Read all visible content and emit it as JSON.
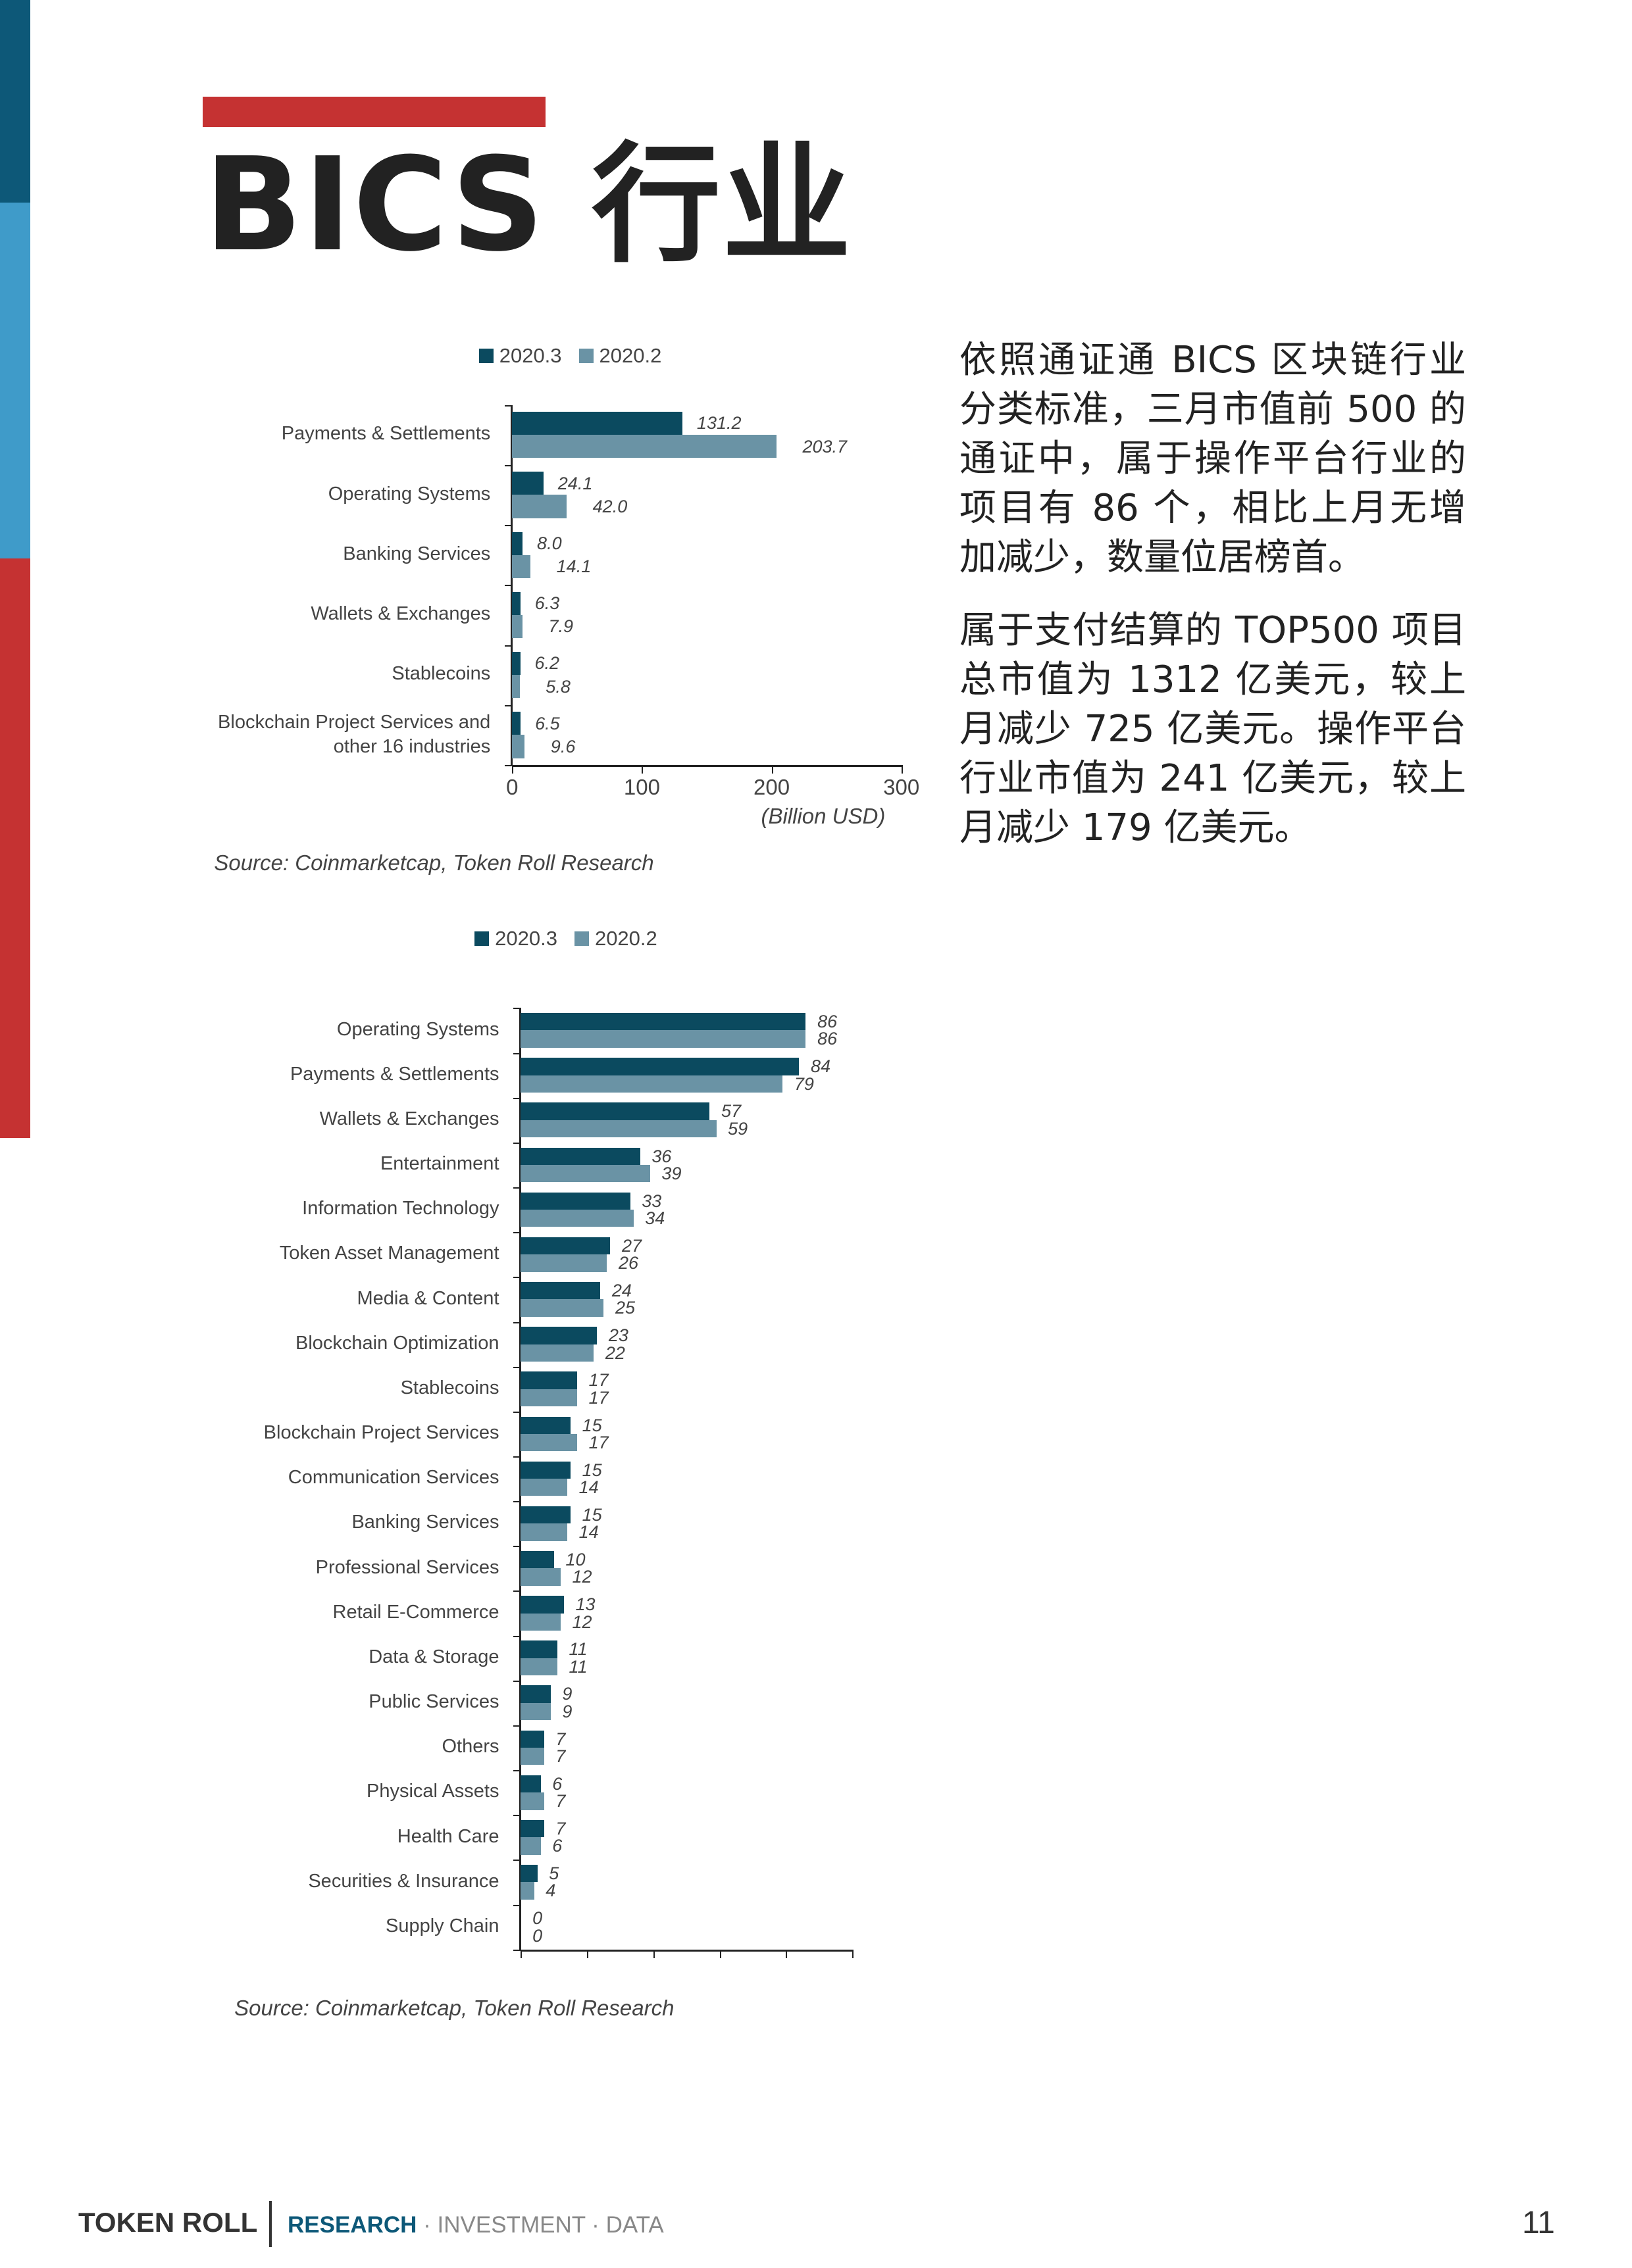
{
  "page": {
    "title": "BICS 行业",
    "paragraphs": [
      "依照通证通 BICS 区块链行业分类标准，三月市值前 500 的通证中，属于操作平台行业的项目有 86 个，相比上月无增加减少，数量位居榜首。",
      "属于支付结算的 TOP500 项目总市值为 1312 亿美元，较上月减少 725 亿美元。操作平台行业市值为 241 亿美元，较上月减少 179 亿美元。"
    ],
    "footer": {
      "brand": "TOKEN ROLL",
      "research": "RESEARCH",
      "rest": " · INVESTMENT · DATA",
      "page_number": "11"
    },
    "colors": {
      "series_2020_3": "#0b4a5f",
      "series_2020_2": "#6a93a5",
      "accent_red": "#c53232",
      "sidebar_dark_blue": "#0d5878",
      "sidebar_light_blue": "#3f9bc9"
    }
  },
  "chart_data": [
    {
      "type": "bar",
      "orientation": "horizontal",
      "categories": [
        "Payments & Settlements",
        "Operating Systems",
        "Banking Services",
        "Wallets & Exchanges",
        "Stablecoins",
        "Blockchain Project Services and\nother 16 industries"
      ],
      "series": [
        {
          "name": "2020.3",
          "values": [
            131.2,
            24.1,
            8.0,
            6.3,
            6.2,
            6.5
          ],
          "labels": [
            "131.2",
            "24.1",
            "8.0",
            "6.3",
            "6.2",
            "6.5"
          ]
        },
        {
          "name": "2020.2",
          "values": [
            203.7,
            42.0,
            14.1,
            7.9,
            5.8,
            9.6
          ],
          "labels": [
            "203.7",
            "42.0",
            "14.1",
            "7.9",
            "5.8",
            "9.6"
          ]
        }
      ],
      "xlim": [
        0,
        300
      ],
      "xticks": [
        "0",
        "100",
        "200",
        "300"
      ],
      "xlabel": "(Billion USD)",
      "legend": "top",
      "grid": false,
      "source": "Source: Coinmarketcap, Token Roll Research"
    },
    {
      "type": "bar",
      "orientation": "horizontal",
      "categories": [
        "Operating Systems",
        "Payments & Settlements",
        "Wallets & Exchanges",
        "Entertainment",
        "Information Technology",
        "Token Asset Management",
        "Media & Content",
        "Blockchain Optimization",
        "Stablecoins",
        "Blockchain Project Services",
        "Communication Services",
        "Banking Services",
        "Professional Services",
        "Retail E-Commerce",
        "Data & Storage",
        "Public Services",
        "Others",
        "Physical Assets",
        "Health Care",
        "Securities & Insurance",
        "Supply Chain"
      ],
      "series": [
        {
          "name": "2020.3",
          "values": [
            86,
            84,
            57,
            36,
            33,
            27,
            24,
            23,
            17,
            15,
            15,
            15,
            10,
            13,
            11,
            9,
            7,
            6,
            7,
            5,
            0
          ],
          "labels": [
            "86",
            "84",
            "57",
            "36",
            "33",
            "27",
            "24",
            "23",
            "17",
            "15",
            "15",
            "15",
            "10",
            "13",
            "11",
            "9",
            "7",
            "6",
            "7",
            "5",
            "0"
          ]
        },
        {
          "name": "2020.2",
          "values": [
            86,
            79,
            59,
            39,
            34,
            26,
            25,
            22,
            17,
            17,
            14,
            14,
            12,
            12,
            11,
            9,
            7,
            7,
            6,
            4,
            0
          ],
          "labels": [
            "86",
            "79",
            "59",
            "39",
            "34",
            "26",
            "25",
            "22",
            "17",
            "17",
            "14",
            "14",
            "12",
            "12",
            "11",
            "9",
            "7",
            "7",
            "6",
            "4",
            "0"
          ]
        }
      ],
      "xlim": [
        0,
        100
      ],
      "xtick_count": 6,
      "legend": "top",
      "grid": false,
      "source": "Source: Coinmarketcap, Token Roll Research"
    }
  ]
}
